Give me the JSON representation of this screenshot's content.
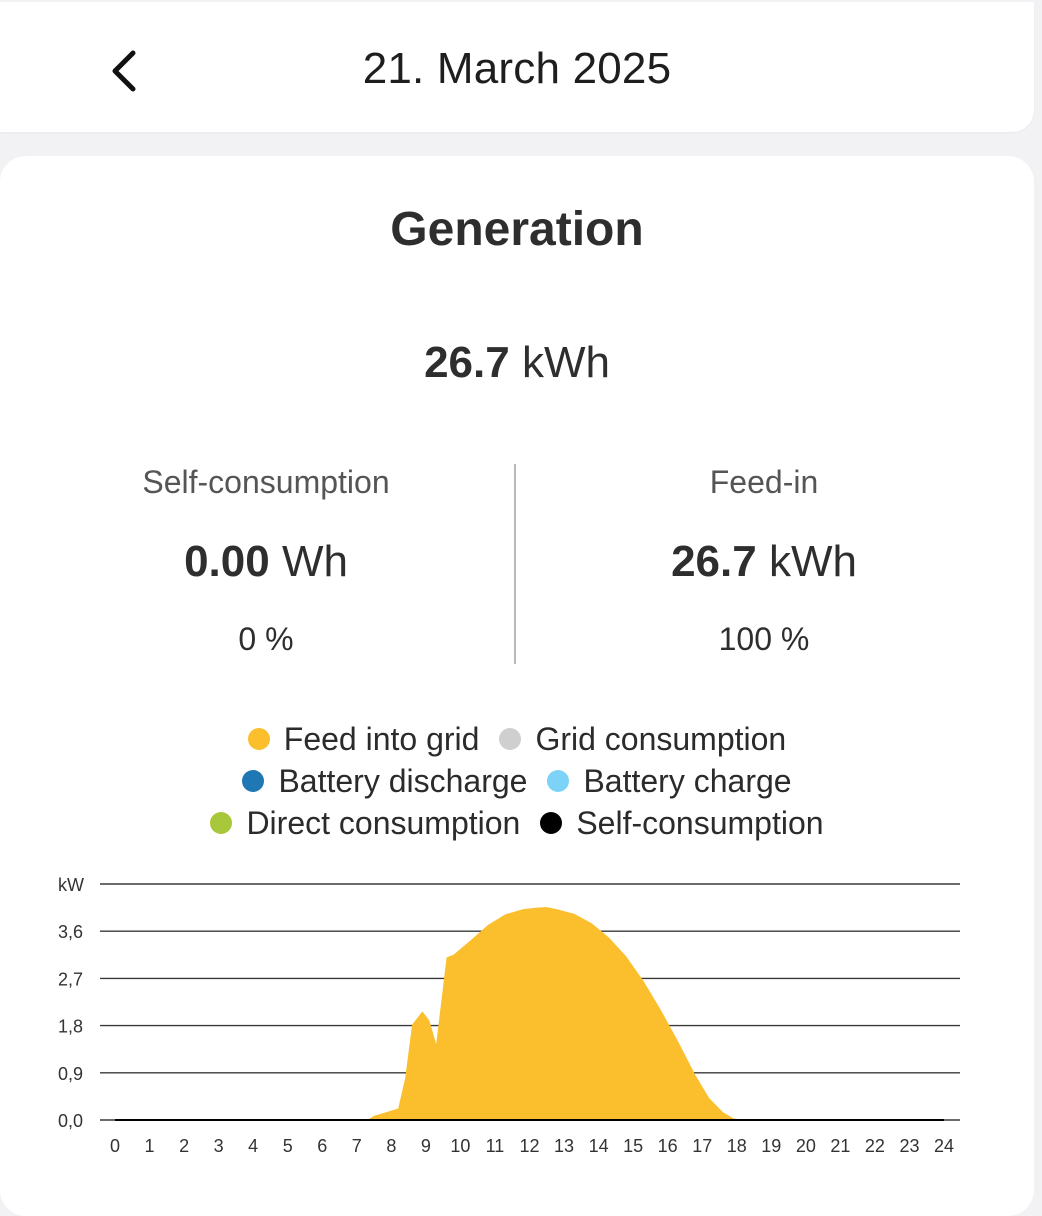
{
  "header": {
    "title": "21. March 2025"
  },
  "generation": {
    "title": "Generation",
    "total_value": "26.7",
    "total_unit": "kWh",
    "self_consumption": {
      "label": "Self-consumption",
      "value": "0.00",
      "unit": "Wh",
      "percent": "0 %"
    },
    "feed_in": {
      "label": "Feed-in",
      "value": "26.7",
      "unit": "kWh",
      "percent": "100 %"
    }
  },
  "legend": [
    {
      "label": "Feed into grid",
      "color": "#fbbf2e"
    },
    {
      "label": "Grid consumption",
      "color": "#cfcfcf"
    },
    {
      "label": "Battery discharge",
      "color": "#1f78b4"
    },
    {
      "label": "Battery charge",
      "color": "#7dd3f7"
    },
    {
      "label": "Direct consumption",
      "color": "#a8c73a"
    },
    {
      "label": "Self-consumption",
      "color": "#000000"
    }
  ],
  "chart_data": {
    "type": "area",
    "ylabel": "kW",
    "y_ticks": [
      "0,0",
      "0,9",
      "1,8",
      "2,7",
      "3,6"
    ],
    "ylim": [
      0,
      4.5
    ],
    "xlim": [
      0,
      24
    ],
    "x_ticks": [
      "0",
      "1",
      "2",
      "3",
      "4",
      "5",
      "6",
      "7",
      "8",
      "9",
      "10",
      "11",
      "12",
      "13",
      "14",
      "15",
      "16",
      "17",
      "18",
      "19",
      "20",
      "21",
      "22",
      "23",
      "24"
    ],
    "grid": true,
    "series": [
      {
        "name": "Feed into grid",
        "color": "#fbbf2e",
        "x": [
          0,
          7.3,
          7.5,
          7.8,
          8.2,
          8.4,
          8.6,
          8.9,
          9.1,
          9.3,
          9.6,
          9.8,
          10.3,
          10.8,
          11.3,
          11.8,
          12.2,
          12.5,
          12.8,
          13.3,
          13.8,
          14.3,
          14.8,
          15.3,
          15.8,
          16.3,
          16.8,
          17.2,
          17.6,
          17.9,
          18.2,
          24
        ],
        "y": [
          0,
          0,
          0.08,
          0.14,
          0.22,
          0.8,
          1.82,
          2.07,
          1.9,
          1.45,
          3.1,
          3.15,
          3.43,
          3.72,
          3.92,
          4.02,
          4.05,
          4.06,
          4.02,
          3.93,
          3.75,
          3.48,
          3.12,
          2.65,
          2.1,
          1.5,
          0.86,
          0.42,
          0.15,
          0.03,
          0,
          0
        ]
      },
      {
        "name": "Self-consumption",
        "color": "#000000",
        "x": [
          0,
          24
        ],
        "y": [
          0,
          0
        ]
      }
    ]
  }
}
